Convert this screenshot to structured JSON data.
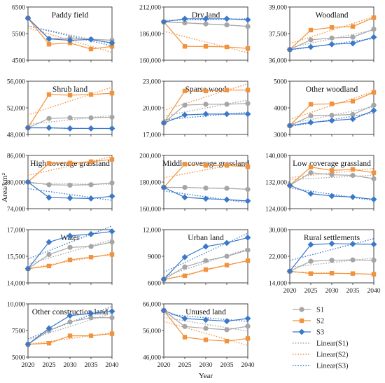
{
  "figure": {
    "xlabel": "Year",
    "ylabel": "Area/km²"
  },
  "colors": {
    "S1": "#a6a6a6",
    "S2": "#f2923c",
    "S3": "#3a78c9"
  },
  "legend": {
    "placement": "bottom-right",
    "entries": [
      {
        "key": "S1",
        "label": "S1",
        "kind": "marker",
        "marker": "circle"
      },
      {
        "key": "S2",
        "label": "S2",
        "kind": "marker",
        "marker": "square"
      },
      {
        "key": "S3",
        "label": "S3",
        "kind": "marker",
        "marker": "diamond"
      },
      {
        "key": "S1",
        "label": "Linear(S1)",
        "kind": "dotted"
      },
      {
        "key": "S2",
        "label": "Linear(S2)",
        "kind": "dotted"
      },
      {
        "key": "S3",
        "label": "Linear(S3)",
        "kind": "dotted"
      }
    ]
  },
  "chart_data": [
    {
      "type": "line",
      "title": "Paddy field",
      "x": [
        2020,
        2025,
        2030,
        2035,
        2040
      ],
      "ylim": [
        4500,
        6500
      ],
      "yticks": [
        4500,
        5500,
        6500
      ],
      "ytick_labels": [
        "4500",
        "5500",
        "6500"
      ],
      "xticks_shown": false,
      "series": [
        {
          "name": "S1",
          "values": [
            6080,
            5310,
            5330,
            5290,
            5250
          ]
        },
        {
          "name": "S2",
          "values": [
            6080,
            5100,
            5150,
            4920,
            5020
          ]
        },
        {
          "name": "S3",
          "values": [
            6080,
            5300,
            5250,
            5280,
            5150
          ]
        }
      ]
    },
    {
      "type": "line",
      "title": "Dry land",
      "x": [
        2020,
        2025,
        2030,
        2035,
        2040
      ],
      "ylim": [
        160000,
        212000
      ],
      "yticks": [
        160000,
        186000,
        212000
      ],
      "ytick_labels": [
        "160,000",
        "186,000",
        "212,000"
      ],
      "xticks_shown": false,
      "series": [
        {
          "name": "S1",
          "values": [
            197500,
            196500,
            195500,
            194500,
            193000
          ]
        },
        {
          "name": "S2",
          "values": [
            197500,
            173500,
            173500,
            173000,
            171500
          ]
        },
        {
          "name": "S3",
          "values": [
            197500,
            200500,
            200500,
            200500,
            199500
          ]
        }
      ]
    },
    {
      "type": "line",
      "title": "Woodland",
      "x": [
        2020,
        2025,
        2030,
        2035,
        2040
      ],
      "ylim": [
        36000,
        39000
      ],
      "yticks": [
        36000,
        37500,
        39000
      ],
      "ytick_labels": [
        "36,000",
        "37,500",
        "39,000"
      ],
      "xticks_shown": false,
      "series": [
        {
          "name": "S1",
          "values": [
            36600,
            37150,
            37250,
            37300,
            37750
          ]
        },
        {
          "name": "S2",
          "values": [
            36600,
            37700,
            37850,
            37900,
            38400
          ]
        },
        {
          "name": "S3",
          "values": [
            36600,
            36750,
            36900,
            36950,
            37300
          ]
        }
      ]
    },
    {
      "type": "line",
      "title": "Shrub land",
      "x": [
        2020,
        2025,
        2030,
        2035,
        2040
      ],
      "ylim": [
        48000,
        56000
      ],
      "yticks": [
        48000,
        52000,
        56000
      ],
      "ytick_labels": [
        "48,000",
        "52,000",
        "56,000"
      ],
      "xticks_shown": false,
      "series": [
        {
          "name": "S1",
          "values": [
            49000,
            50400,
            50500,
            50500,
            50600
          ]
        },
        {
          "name": "S2",
          "values": [
            49000,
            54000,
            53900,
            54000,
            54200
          ]
        },
        {
          "name": "S3",
          "values": [
            49000,
            49000,
            48900,
            48900,
            48900
          ]
        }
      ]
    },
    {
      "type": "line",
      "title": "Sparse wood",
      "x": [
        2020,
        2025,
        2030,
        2035,
        2040
      ],
      "ylim": [
        17000,
        23000
      ],
      "yticks": [
        17000,
        20000,
        23000
      ],
      "ytick_labels": [
        "17,000",
        "20,000",
        "23,000"
      ],
      "xticks_shown": false,
      "series": [
        {
          "name": "S1",
          "values": [
            18300,
            20300,
            20400,
            20400,
            20500
          ]
        },
        {
          "name": "S2",
          "values": [
            18300,
            21900,
            21900,
            22000,
            22000
          ]
        },
        {
          "name": "S3",
          "values": [
            18300,
            19200,
            19300,
            19300,
            19300
          ]
        }
      ]
    },
    {
      "type": "line",
      "title": "Other woodland",
      "x": [
        2020,
        2025,
        2030,
        2035,
        2040
      ],
      "ylim": [
        3000,
        5000
      ],
      "yticks": [
        3000,
        4000,
        5000
      ],
      "ytick_labels": [
        "3000",
        "4000",
        "5000"
      ],
      "xticks_shown": false,
      "series": [
        {
          "name": "S1",
          "values": [
            3330,
            3700,
            3720,
            3750,
            4100
          ]
        },
        {
          "name": "S2",
          "values": [
            3330,
            4130,
            4150,
            4250,
            4580
          ]
        },
        {
          "name": "S3",
          "values": [
            3330,
            3450,
            3520,
            3580,
            3900
          ]
        }
      ]
    },
    {
      "type": "line",
      "title": "High coverage grassland",
      "x": [
        2020,
        2025,
        2030,
        2035,
        2040
      ],
      "ylim": [
        74000,
        86000
      ],
      "yticks": [
        74000,
        80000,
        86000
      ],
      "ytick_labels": [
        "74,000",
        "80,000",
        "86,000"
      ],
      "xticks_shown": false,
      "series": [
        {
          "name": "S1",
          "values": [
            80000,
            79400,
            79300,
            79400,
            79800
          ]
        },
        {
          "name": "S2",
          "values": [
            80000,
            84200,
            84300,
            84600,
            85100
          ]
        },
        {
          "name": "S3",
          "values": [
            80000,
            76500,
            76400,
            76300,
            76800
          ]
        }
      ]
    },
    {
      "type": "line",
      "title": "Middle coverage grassland",
      "x": [
        2020,
        2025,
        2030,
        2035,
        2040
      ],
      "ylim": [
        160000,
        200000
      ],
      "yticks": [
        160000,
        180000,
        200000
      ],
      "ytick_labels": [
        "160,000",
        "180,000",
        "200,000"
      ],
      "xticks_shown": false,
      "series": [
        {
          "name": "S1",
          "values": [
            176000,
            176000,
            175500,
            175300,
            174500
          ]
        },
        {
          "name": "S2",
          "values": [
            176000,
            193500,
            192500,
            192500,
            191500
          ]
        },
        {
          "name": "S3",
          "values": [
            176000,
            168500,
            167500,
            166800,
            165800
          ]
        }
      ]
    },
    {
      "type": "line",
      "title": "Low coverage grassland",
      "x": [
        2020,
        2025,
        2030,
        2035,
        2040
      ],
      "ylim": [
        124000,
        140000
      ],
      "yticks": [
        124000,
        132000,
        140000
      ],
      "ytick_labels": [
        "124,000",
        "132,000",
        "140,000"
      ],
      "xticks_shown": false,
      "series": [
        {
          "name": "S1",
          "values": [
            131000,
            134800,
            134200,
            134000,
            133000
          ]
        },
        {
          "name": "S2",
          "values": [
            131000,
            136500,
            135500,
            135800,
            134800
          ]
        },
        {
          "name": "S3",
          "values": [
            131000,
            128500,
            127800,
            127500,
            126800
          ]
        }
      ]
    },
    {
      "type": "line",
      "title": "Water",
      "x": [
        2020,
        2025,
        2030,
        2035,
        2040
      ],
      "ylim": [
        14000,
        17000
      ],
      "yticks": [
        14000,
        15500,
        17000
      ],
      "ytick_labels": [
        "14,000",
        "15,500",
        "17,000"
      ],
      "xticks_shown": false,
      "series": [
        {
          "name": "S1",
          "values": [
            14800,
            15600,
            16000,
            16050,
            16300
          ]
        },
        {
          "name": "S2",
          "values": [
            14800,
            14950,
            15300,
            15450,
            15600
          ]
        },
        {
          "name": "S3",
          "values": [
            14800,
            16300,
            16650,
            16750,
            16900
          ]
        }
      ]
    },
    {
      "type": "line",
      "title": "Urban land",
      "x": [
        2020,
        2025,
        2030,
        2035,
        2040
      ],
      "ylim": [
        6000,
        12000
      ],
      "yticks": [
        6000,
        9000,
        12000
      ],
      "ytick_labels": [
        "6000",
        "9000",
        "12,000"
      ],
      "xticks_shown": false,
      "series": [
        {
          "name": "S1",
          "values": [
            6400,
            7800,
            8500,
            9000,
            9700
          ]
        },
        {
          "name": "S2",
          "values": [
            6400,
            6800,
            7500,
            8000,
            8500
          ]
        },
        {
          "name": "S3",
          "values": [
            6400,
            8900,
            10100,
            10500,
            11100
          ]
        }
      ]
    },
    {
      "type": "line",
      "title": "Rural settlements",
      "x": [
        2020,
        2025,
        2030,
        2035,
        2040
      ],
      "ylim": [
        14000,
        30000
      ],
      "yticks": [
        14000,
        22000,
        30000
      ],
      "ytick_labels": [
        "14,000",
        "22,000",
        "30,000"
      ],
      "xticks_shown": true,
      "xtick_labels": [
        "2020",
        "2025",
        "2030",
        "2035",
        "2040"
      ],
      "series": [
        {
          "name": "S1",
          "values": [
            17500,
            20500,
            20800,
            20900,
            20800
          ]
        },
        {
          "name": "S2",
          "values": [
            17500,
            16800,
            16900,
            16800,
            16600
          ]
        },
        {
          "name": "S3",
          "values": [
            17500,
            25500,
            25800,
            25700,
            25600
          ]
        }
      ]
    },
    {
      "type": "line",
      "title": "Other construction land",
      "x": [
        2020,
        2025,
        2030,
        2035,
        2040
      ],
      "ylim": [
        5000,
        10000
      ],
      "yticks": [
        5000,
        7500,
        10000
      ],
      "ytick_labels": [
        "5000",
        "7500",
        "10,000"
      ],
      "xticks_shown": true,
      "xtick_labels": [
        "2020",
        "2025",
        "2030",
        "2035",
        "2040"
      ],
      "series": [
        {
          "name": "S1",
          "values": [
            6200,
            7500,
            8300,
            8700,
            8700
          ]
        },
        {
          "name": "S2",
          "values": [
            6200,
            6300,
            7000,
            7000,
            7200
          ]
        },
        {
          "name": "S3",
          "values": [
            6200,
            7700,
            8900,
            9100,
            9300
          ]
        }
      ]
    },
    {
      "type": "line",
      "title": "Unused land",
      "x": [
        2020,
        2025,
        2030,
        2035,
        2040
      ],
      "ylim": [
        46000,
        66000
      ],
      "yticks": [
        46000,
        56000,
        66000
      ],
      "ytick_labels": [
        "46,000",
        "56,000",
        "66,000"
      ],
      "xticks_shown": true,
      "xtick_labels": [
        "2020",
        "2025",
        "2030",
        "2035",
        "2040"
      ],
      "series": [
        {
          "name": "S1",
          "values": [
            63500,
            57500,
            56800,
            56300,
            57600
          ]
        },
        {
          "name": "S2",
          "values": [
            63500,
            53500,
            52500,
            52000,
            53000
          ]
        },
        {
          "name": "S3",
          "values": [
            63500,
            60500,
            60000,
            59500,
            60500
          ]
        }
      ]
    }
  ]
}
